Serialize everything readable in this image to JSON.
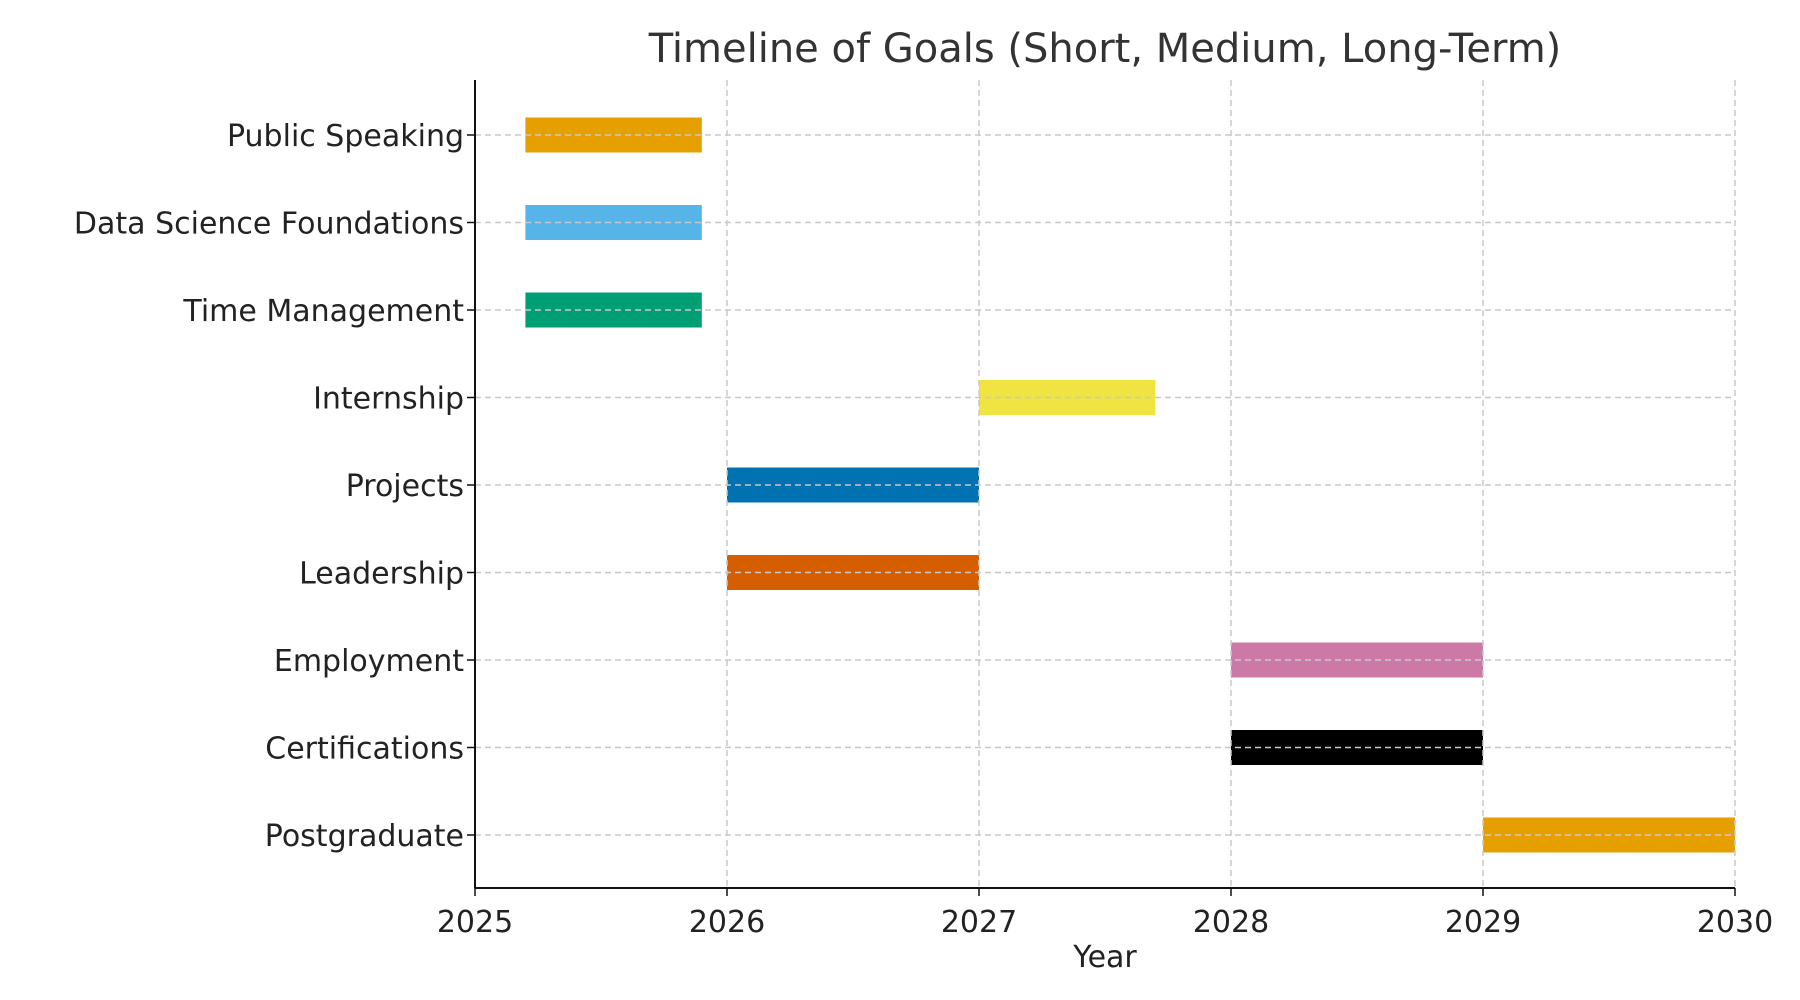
{
  "chart_data": {
    "type": "bar",
    "orientation": "horizontal-gantt",
    "title": "Timeline of Goals (Short, Medium, Long-Term)",
    "xlabel": "Year",
    "ylabel": "",
    "xlim": [
      2025,
      2030
    ],
    "x_ticks": [
      2025,
      2026,
      2027,
      2028,
      2029,
      2030
    ],
    "grid": true,
    "legend": "none",
    "tasks": [
      {
        "label": "Public Speaking",
        "start": 2025.2,
        "end": 2025.9,
        "color": "#E69F00"
      },
      {
        "label": "Data Science Foundations",
        "start": 2025.2,
        "end": 2025.9,
        "color": "#56B4E9"
      },
      {
        "label": "Time Management",
        "start": 2025.2,
        "end": 2025.9,
        "color": "#009E73"
      },
      {
        "label": "Internship",
        "start": 2027.0,
        "end": 2027.7,
        "color": "#F0E442"
      },
      {
        "label": "Projects",
        "start": 2026.0,
        "end": 2027.0,
        "color": "#0072B2"
      },
      {
        "label": "Leadership",
        "start": 2026.0,
        "end": 2027.0,
        "color": "#D55E00"
      },
      {
        "label": "Employment",
        "start": 2028.0,
        "end": 2029.0,
        "color": "#CC79A7"
      },
      {
        "label": "Certifications",
        "start": 2028.0,
        "end": 2029.0,
        "color": "#000000"
      },
      {
        "label": "Postgraduate",
        "start": 2029.0,
        "end": 2030.0,
        "color": "#E69F00"
      }
    ]
  }
}
